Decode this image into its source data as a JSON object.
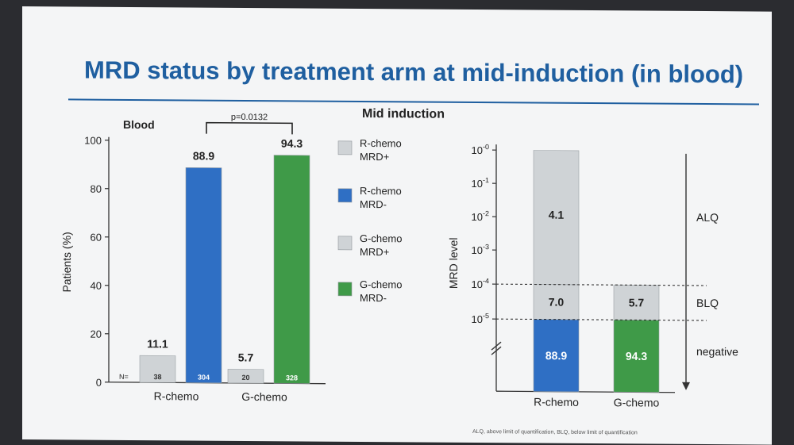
{
  "title": "MRD status by treatment arm at mid-induction (in blood)",
  "subtitle": "Mid induction",
  "footnote": "ALQ, above limit of quantification, BLQ, below limit of quantification",
  "colors": {
    "r_chemo_pos": "#cfd3d6",
    "r_chemo_neg": "#2f6fc4",
    "g_chemo_pos": "#cfd3d6",
    "g_chemo_neg": "#3f9a48",
    "title": "#1f5fa0"
  },
  "legend": [
    {
      "line1": "R-chemo",
      "line2": "MRD+",
      "color": "#cfd3d6"
    },
    {
      "line1": "R-chemo",
      "line2": "MRD-",
      "color": "#2f6fc4"
    },
    {
      "line1": "G-chemo",
      "line2": "MRD+",
      "color": "#cfd3d6"
    },
    {
      "line1": "G-chemo",
      "line2": "MRD-",
      "color": "#3f9a48"
    }
  ],
  "chart_data": [
    {
      "type": "bar",
      "title": "Blood",
      "ylabel": "Patients (%)",
      "ylim": [
        0,
        100
      ],
      "yticks": [
        0,
        20,
        40,
        60,
        80,
        100
      ],
      "n_label": "N=",
      "pvalue": "p=0.0132",
      "groups": [
        {
          "category": "R-chemo",
          "bars": [
            {
              "series": "R-chemo MRD+",
              "value": 11.1,
              "label": "11.1",
              "n": "38",
              "color": "#cfd3d6"
            },
            {
              "series": "R-chemo MRD-",
              "value": 88.9,
              "label": "88.9",
              "n": "304",
              "color": "#2f6fc4"
            }
          ]
        },
        {
          "category": "G-chemo",
          "bars": [
            {
              "series": "G-chemo MRD+",
              "value": 5.7,
              "label": "5.7",
              "n": "20",
              "color": "#cfd3d6"
            },
            {
              "series": "G-chemo MRD-",
              "value": 94.3,
              "label": "94.3",
              "n": "328",
              "color": "#3f9a48"
            }
          ]
        }
      ]
    },
    {
      "type": "bar",
      "stacked": true,
      "ylabel": "MRD level",
      "yticks": [
        {
          "base": "10",
          "exp": "-0"
        },
        {
          "base": "10",
          "exp": "-1"
        },
        {
          "base": "10",
          "exp": "-2"
        },
        {
          "base": "10",
          "exp": "-3"
        },
        {
          "base": "10",
          "exp": "-4"
        },
        {
          "base": "10",
          "exp": "-5"
        }
      ],
      "categories": [
        "R-chemo",
        "G-chemo"
      ],
      "series": [
        {
          "name": "negative",
          "values": [
            88.9,
            94.3
          ],
          "labels": [
            "88.9",
            "94.3"
          ]
        },
        {
          "name": "BLQ",
          "values": [
            7.0,
            5.7
          ],
          "labels": [
            "7.0",
            "5.7"
          ]
        },
        {
          "name": "ALQ",
          "values": [
            4.1,
            0
          ],
          "labels": [
            "4.1",
            ""
          ]
        }
      ],
      "zones": [
        "ALQ",
        "BLQ",
        "negative"
      ]
    }
  ]
}
